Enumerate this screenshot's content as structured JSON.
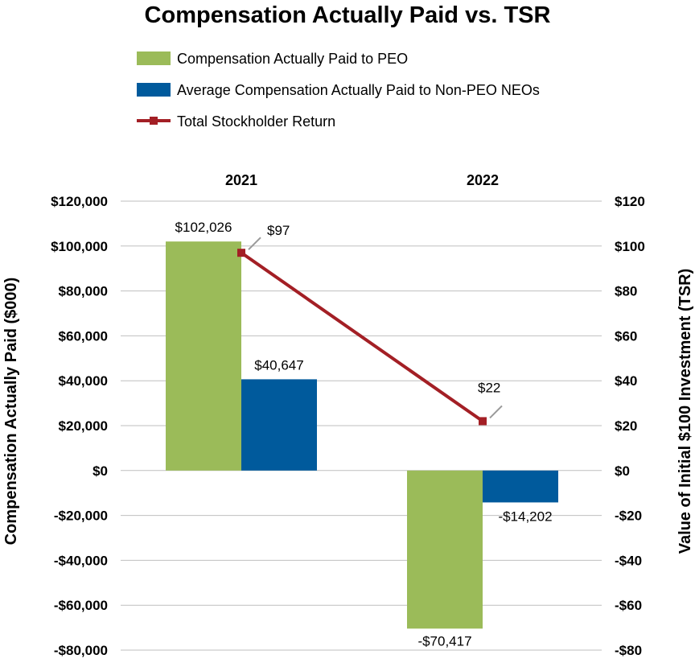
{
  "chart_data": {
    "type": "bar",
    "title": "Compensation Actually Paid vs. TSR",
    "categories": [
      "2021",
      "2022"
    ],
    "series": [
      {
        "name": "Compensation Actually Paid to PEO",
        "kind": "bar",
        "axis": "left",
        "color": "#9bbb59",
        "values": [
          102026,
          -70417
        ],
        "labels": [
          "$102,026",
          "-$70,417"
        ]
      },
      {
        "name": "Average Compensation Actually Paid to Non-PEO NEOs",
        "kind": "bar",
        "axis": "left",
        "color": "#005a9c",
        "values": [
          40647,
          -14202
        ],
        "labels": [
          "$40,647",
          "-$14,202"
        ]
      },
      {
        "name": "Total Stockholder Return",
        "kind": "line",
        "axis": "right",
        "color": "#a31f25",
        "values": [
          97,
          22
        ],
        "labels": [
          "$97",
          "$22"
        ]
      }
    ],
    "ylabel": "Compensation Actually Paid ($000)",
    "y2label": "Value of Initial $100 Investment (TSR)",
    "ylim": [
      -80000,
      120000
    ],
    "y2lim": [
      -80,
      120
    ],
    "yticks": [
      120000,
      100000,
      80000,
      60000,
      40000,
      20000,
      0,
      -20000,
      -40000,
      -60000,
      -80000
    ],
    "ytick_labels": [
      "$120,000",
      "$100,000",
      "$80,000",
      "$60,000",
      "$40,000",
      "$20,000",
      "$0",
      "-$20,000",
      "-$40,000",
      "-$60,000",
      "-$80,000"
    ],
    "y2ticks": [
      120,
      100,
      80,
      60,
      40,
      20,
      0,
      -20,
      -40,
      -60,
      -80
    ],
    "y2tick_labels": [
      "$120",
      "$100",
      "$80",
      "$60",
      "$40",
      "$20",
      "$0",
      "-$20",
      "-$40",
      "-$60",
      "-$80"
    ],
    "grid": true,
    "legend_position": "top"
  }
}
